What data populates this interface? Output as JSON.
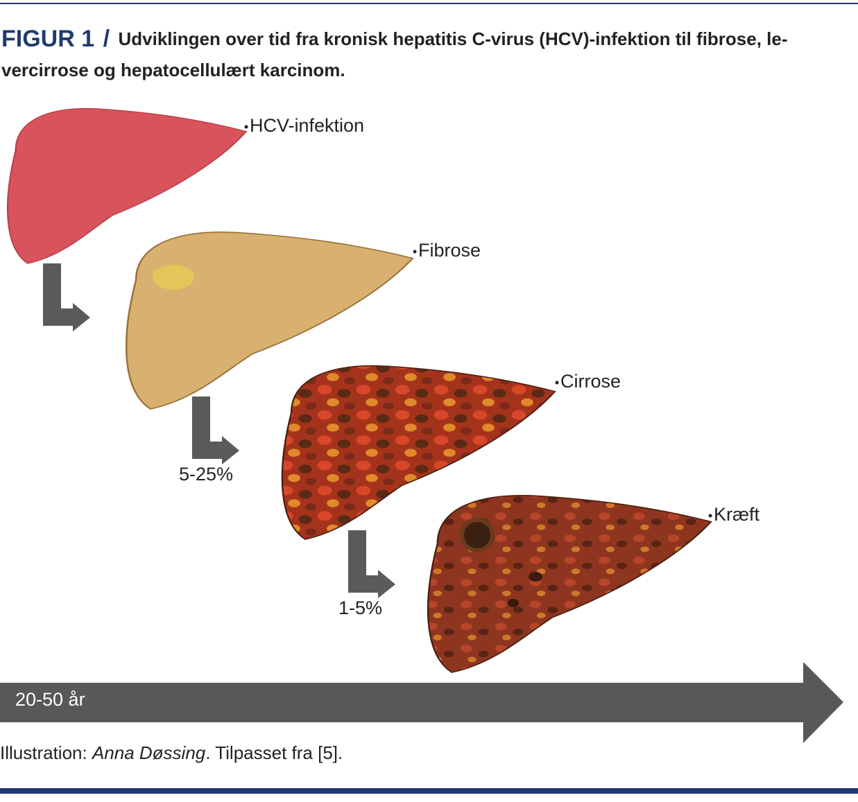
{
  "header": {
    "label": "FIGUR 1",
    "slash": "/",
    "title_lines": [
      "Udviklingen over tid fra kronisk hepatitis C-virus (HCV)-infektion til fibrose, le-",
      "vercirrose og hepatocellulært karcinom."
    ]
  },
  "stages": [
    {
      "label": "HCV-infektion"
    },
    {
      "label": "Fibrose"
    },
    {
      "label": "Cirrose"
    },
    {
      "label": "Kræft"
    }
  ],
  "transitions": [
    {
      "label": "5-25%"
    },
    {
      "label": "1-5%"
    }
  ],
  "timeline": {
    "label": "20-50 år"
  },
  "caption": {
    "prefix": "Illustration: ",
    "author": "Anna Døssing",
    "suffix": ". Tilpasset fra [5]."
  }
}
